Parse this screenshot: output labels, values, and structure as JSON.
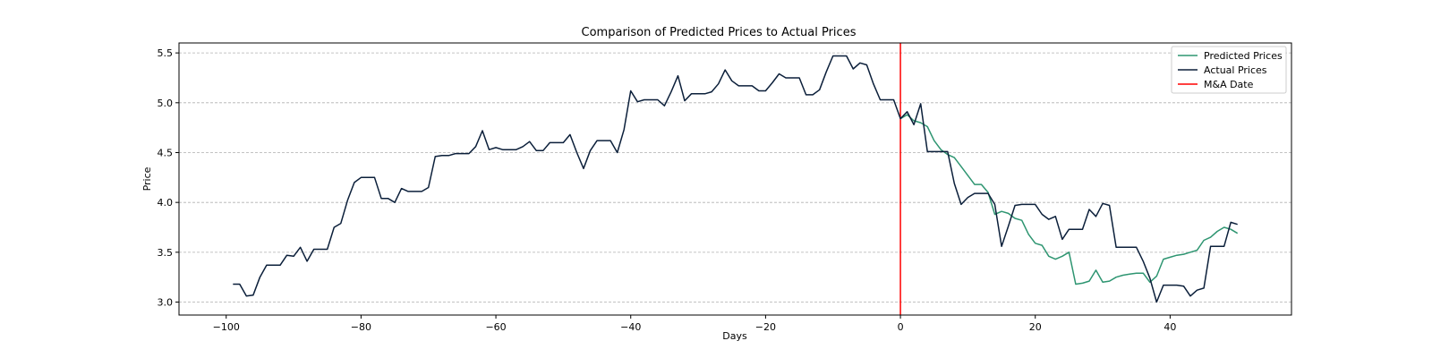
{
  "chart_data": {
    "type": "line",
    "title": "Comparison of Predicted Prices to Actual Prices",
    "xlabel": "Days",
    "ylabel": "Price",
    "xlim": [
      -107,
      58
    ],
    "ylim": [
      2.87,
      5.6
    ],
    "xticks": [
      -100,
      -80,
      -60,
      -40,
      -20,
      0,
      20,
      40
    ],
    "xtick_labels": [
      "−100",
      "−80",
      "−60",
      "−40",
      "−20",
      "0",
      "20",
      "40"
    ],
    "yticks": [
      3.0,
      3.5,
      4.0,
      4.5,
      5.0,
      5.5
    ],
    "ytick_labels": [
      "3.0",
      "3.5",
      "4.0",
      "4.5",
      "5.0",
      "5.5"
    ],
    "grid": "horizontal dashed",
    "legend": "top-right",
    "colors": {
      "predicted": "#2e9571",
      "actual": "#0b1f3a",
      "event": "#ff0000",
      "grid": "#b0b0b0"
    },
    "series": [
      {
        "name": "Predicted Prices",
        "x": [
          0,
          1,
          2,
          3,
          4,
          5,
          6,
          7,
          8,
          9,
          10,
          11,
          12,
          13,
          14,
          15,
          16,
          17,
          18,
          19,
          20,
          21,
          22,
          23,
          24,
          25,
          26,
          27,
          28,
          29,
          30,
          31,
          32,
          33,
          34,
          35,
          36,
          37,
          38,
          39,
          40,
          41,
          42,
          43,
          44,
          45,
          46,
          47,
          48,
          49,
          50
        ],
        "values": [
          4.84,
          4.88,
          4.82,
          4.8,
          4.76,
          4.62,
          4.53,
          4.48,
          4.45,
          4.36,
          4.27,
          4.18,
          4.18,
          4.1,
          3.88,
          3.91,
          3.89,
          3.84,
          3.82,
          3.68,
          3.59,
          3.57,
          3.46,
          3.43,
          3.46,
          3.5,
          3.18,
          3.19,
          3.21,
          3.32,
          3.2,
          3.21,
          3.25,
          3.27,
          3.28,
          3.29,
          3.29,
          3.2,
          3.26,
          3.43,
          3.45,
          3.47,
          3.48,
          3.5,
          3.52,
          3.62,
          3.65,
          3.71,
          3.75,
          3.73,
          3.69
        ]
      },
      {
        "name": "Actual Prices",
        "x": [
          -99,
          -98,
          -97,
          -96,
          -95,
          -94,
          -93,
          -92,
          -91,
          -90,
          -89,
          -88,
          -87,
          -86,
          -85,
          -84,
          -83,
          -82,
          -81,
          -80,
          -79,
          -78,
          -77,
          -76,
          -75,
          -74,
          -73,
          -72,
          -71,
          -70,
          -69,
          -68,
          -67,
          -66,
          -65,
          -64,
          -63,
          -62,
          -61,
          -60,
          -59,
          -58,
          -57,
          -56,
          -55,
          -54,
          -53,
          -52,
          -51,
          -50,
          -49,
          -48,
          -47,
          -46,
          -45,
          -44,
          -43,
          -42,
          -41,
          -40,
          -39,
          -38,
          -37,
          -36,
          -35,
          -34,
          -33,
          -32,
          -31,
          -30,
          -29,
          -28,
          -27,
          -26,
          -25,
          -24,
          -23,
          -22,
          -21,
          -20,
          -19,
          -18,
          -17,
          -16,
          -15,
          -14,
          -13,
          -12,
          -11,
          -10,
          -9,
          -8,
          -7,
          -6,
          -5,
          -4,
          -3,
          -2,
          -1,
          0,
          1,
          2,
          3,
          4,
          5,
          6,
          7,
          8,
          9,
          10,
          11,
          12,
          13,
          14,
          15,
          16,
          17,
          18,
          19,
          20,
          21,
          22,
          23,
          24,
          25,
          26,
          27,
          28,
          29,
          30,
          31,
          32,
          33,
          34,
          35,
          36,
          37,
          38,
          39,
          40,
          41,
          42,
          43,
          44,
          45,
          46,
          47,
          48,
          49,
          50
        ],
        "values": [
          3.18,
          3.18,
          3.06,
          3.07,
          3.25,
          3.37,
          3.37,
          3.37,
          3.47,
          3.46,
          3.55,
          3.41,
          3.53,
          3.53,
          3.53,
          3.75,
          3.79,
          4.02,
          4.2,
          4.25,
          4.25,
          4.25,
          4.04,
          4.04,
          4.0,
          4.14,
          4.11,
          4.11,
          4.11,
          4.15,
          4.46,
          4.47,
          4.47,
          4.49,
          4.49,
          4.49,
          4.56,
          4.72,
          4.53,
          4.55,
          4.53,
          4.53,
          4.53,
          4.56,
          4.61,
          4.52,
          4.52,
          4.6,
          4.6,
          4.6,
          4.68,
          4.5,
          4.34,
          4.52,
          4.62,
          4.62,
          4.62,
          4.5,
          4.73,
          5.12,
          5.01,
          5.03,
          5.03,
          5.03,
          4.97,
          5.11,
          5.27,
          5.02,
          5.09,
          5.09,
          5.09,
          5.11,
          5.19,
          5.33,
          5.22,
          5.17,
          5.17,
          5.17,
          5.12,
          5.12,
          5.2,
          5.29,
          5.25,
          5.25,
          5.25,
          5.08,
          5.08,
          5.13,
          5.31,
          5.47,
          5.47,
          5.47,
          5.34,
          5.4,
          5.38,
          5.19,
          5.03,
          5.03,
          5.03,
          4.84,
          4.91,
          4.78,
          4.99,
          4.51,
          4.51,
          4.51,
          4.51,
          4.19,
          3.98,
          4.05,
          4.09,
          4.09,
          4.09,
          3.98,
          3.56,
          3.76,
          3.97,
          3.98,
          3.98,
          3.98,
          3.88,
          3.83,
          3.86,
          3.63,
          3.73,
          3.73,
          3.73,
          3.93,
          3.86,
          3.99,
          3.97,
          3.55,
          3.55,
          3.55,
          3.55,
          3.41,
          3.24,
          3.0,
          3.17,
          3.17,
          3.17,
          3.16,
          3.06,
          3.12,
          3.14,
          3.56,
          3.56,
          3.56,
          3.8,
          3.78
        ]
      }
    ],
    "event_line": {
      "name": "M&A Date",
      "x": 0
    }
  }
}
